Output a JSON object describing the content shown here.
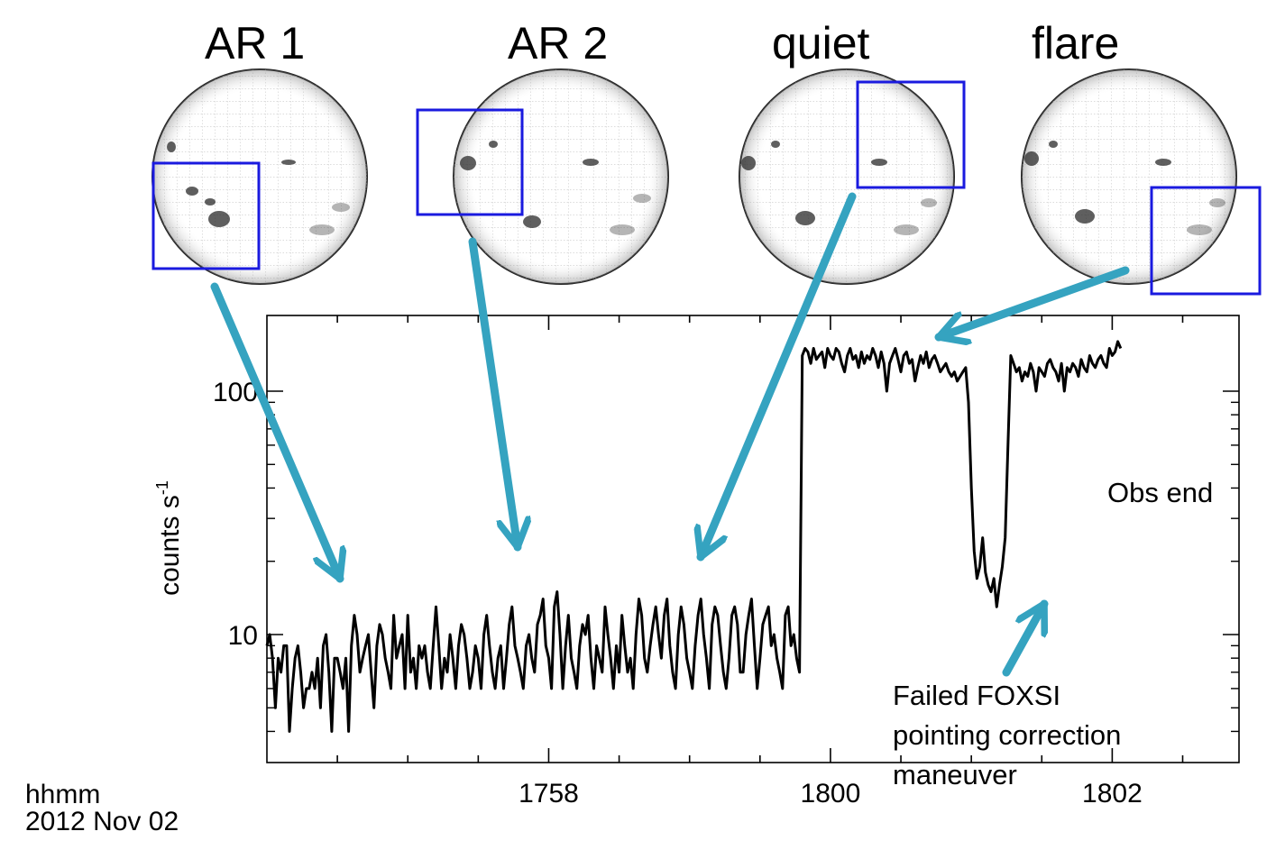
{
  "panels": [
    {
      "title": "AR 1"
    },
    {
      "title": "AR 2"
    },
    {
      "title": "quiet"
    },
    {
      "title": "flare"
    }
  ],
  "annotations": {
    "obs_end": "Obs end",
    "failed_line1": "Failed FOXSI",
    "failed_line2": "pointing  correction",
    "failed_line3": "maneuver"
  },
  "footer": {
    "units": "hhmm",
    "date": "2012 Nov 02"
  },
  "colors": {
    "box": "#1a1adf",
    "arrow": "#35a3c0",
    "trace": "#000000"
  },
  "chart_data": {
    "type": "line",
    "title": "",
    "xlabel": "",
    "ylabel": "counts s",
    "ylabel_superscript": "-1",
    "yscale": "log",
    "ylim": [
      3.2,
      190
    ],
    "xlim_minutes_after_1756": [
      0,
      6.9
    ],
    "x_ticks": [
      {
        "label": "1758",
        "minutes_after_1756": 2
      },
      {
        "label": "1800",
        "minutes_after_1756": 4
      },
      {
        "label": "1802",
        "minutes_after_1756": 6
      }
    ],
    "y_ticks": [
      {
        "label": "10",
        "value": 10
      },
      {
        "label": "100",
        "value": 100
      }
    ],
    "series": [
      {
        "minutes_after_1756_start": 0,
        "step_minutes": 0.02,
        "values": [
          9,
          10,
          8,
          5,
          8,
          7,
          9,
          9,
          4,
          6,
          8,
          9,
          7,
          5,
          6,
          6,
          7,
          6,
          8,
          5,
          9,
          10,
          7,
          4,
          8,
          8,
          7,
          6,
          8,
          4,
          9,
          12,
          10,
          7,
          8,
          9,
          10,
          7,
          5,
          9,
          11,
          10,
          8,
          7,
          6,
          12,
          8,
          9,
          10,
          6,
          12,
          7,
          8,
          6,
          9,
          8,
          9,
          7,
          6,
          9,
          13,
          9,
          6,
          8,
          7,
          10,
          8,
          6,
          9,
          11,
          10,
          8,
          6,
          7,
          9,
          8,
          6,
          10,
          12,
          9,
          7,
          6,
          8,
          9,
          6,
          8,
          11,
          13,
          9,
          8,
          7,
          6,
          9,
          10,
          8,
          7,
          11,
          12,
          14,
          9,
          8,
          6,
          13,
          15,
          10,
          6,
          9,
          12,
          8,
          7,
          6,
          9,
          11,
          10,
          12,
          8,
          6,
          9,
          8,
          7,
          13,
          10,
          8,
          6,
          9,
          7,
          12,
          9,
          7,
          8,
          6,
          10,
          14,
          12,
          8,
          7,
          9,
          11,
          13,
          10,
          8,
          12,
          14,
          9,
          7,
          6,
          10,
          13,
          11,
          8,
          7,
          6,
          9,
          12,
          14,
          10,
          8,
          6,
          11,
          13,
          12,
          9,
          7,
          6,
          8,
          12,
          13,
          11,
          7,
          7,
          10,
          12,
          14,
          9,
          6,
          8,
          11,
          12,
          13,
          9,
          10,
          8,
          7,
          6,
          12,
          13,
          9,
          10,
          8,
          7,
          140,
          150,
          145,
          130,
          150,
          135,
          140,
          145,
          125,
          150,
          140,
          135,
          150,
          145,
          130,
          120,
          140,
          150,
          135,
          140,
          125,
          145,
          130,
          140,
          135,
          150,
          140,
          125,
          145,
          130,
          100,
          130,
          140,
          150,
          135,
          120,
          140,
          145,
          130,
          135,
          110,
          125,
          140,
          130,
          145,
          125,
          135,
          140,
          130,
          120,
          125,
          130,
          120,
          115,
          120,
          110,
          115,
          120,
          125,
          90,
          40,
          22,
          17,
          19,
          25,
          18,
          16,
          15,
          17,
          13,
          16,
          19,
          25,
          60,
          140,
          130,
          120,
          125,
          110,
          120,
          115,
          130,
          120,
          100,
          125,
          120,
          115,
          130,
          135,
          125,
          120,
          110,
          130,
          100,
          125,
          120,
          130,
          125,
          115,
          135,
          125,
          120,
          140,
          130,
          125,
          135,
          140,
          130,
          125,
          150,
          140,
          145,
          160,
          150
        ]
      }
    ]
  }
}
